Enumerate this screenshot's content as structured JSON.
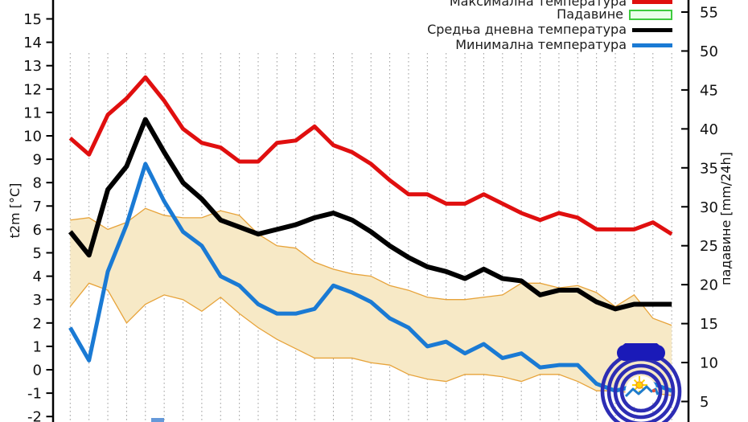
{
  "legend": {
    "items": [
      {
        "label": "Максимална температура",
        "type": "line",
        "color": "#e00f0f"
      },
      {
        "label": "Падавине",
        "type": "box",
        "fill": "#e9ffe9",
        "border": "#3ecb3e"
      },
      {
        "label": "Средња дневна температура",
        "type": "line",
        "color": "#000000"
      },
      {
        "label": "Минимална температура",
        "type": "line",
        "color": "#1a7ad4"
      }
    ]
  },
  "axes": {
    "left": {
      "title": "t2m [°C]",
      "ticks": [
        -2,
        -1,
        0,
        1,
        2,
        3,
        4,
        5,
        6,
        7,
        8,
        9,
        10,
        11,
        12,
        13,
        14,
        15
      ]
    },
    "right": {
      "title": "падавине [mm/24h]",
      "ticks": [
        5,
        10,
        15,
        20,
        25,
        30,
        35,
        40,
        45,
        50,
        55
      ]
    }
  },
  "chart_data": {
    "type": "line",
    "x_axis": {
      "points": 33,
      "visible_labels": []
    },
    "y_left": {
      "label": "t2m [°C]",
      "visible_range": [
        -2.2,
        15.8
      ],
      "ticks": [
        -2,
        -1,
        0,
        1,
        2,
        3,
        4,
        5,
        6,
        7,
        8,
        9,
        10,
        11,
        12,
        13,
        14,
        15
      ]
    },
    "y_right": {
      "label": "падавине [mm/24h]",
      "visible_range": [
        4.8,
        55.9
      ],
      "ticks": [
        5,
        10,
        15,
        20,
        25,
        30,
        35,
        40,
        45,
        50,
        55
      ]
    },
    "grid": {
      "vertical_dotted": true,
      "color": "#9e9e9e"
    },
    "series": [
      {
        "name": "Максимална температура",
        "axis": "left",
        "color": "#e00f0f",
        "width": 5,
        "values": [
          9.9,
          9.2,
          10.9,
          11.6,
          12.5,
          11.5,
          10.3,
          9.7,
          9.5,
          8.9,
          8.9,
          9.7,
          9.8,
          10.4,
          9.6,
          9.3,
          8.8,
          8.1,
          7.5,
          7.5,
          7.1,
          7.1,
          7.5,
          7.1,
          6.7,
          6.4,
          6.7,
          6.5,
          6.0,
          6.0,
          6.0,
          6.3,
          5.8
        ]
      },
      {
        "name": "Средња дневна температура",
        "axis": "left",
        "color": "#000000",
        "width": 6,
        "values": [
          5.9,
          4.9,
          7.7,
          8.7,
          10.7,
          9.3,
          8.0,
          7.3,
          6.4,
          6.1,
          5.8,
          6.0,
          6.2,
          6.5,
          6.7,
          6.4,
          5.9,
          5.3,
          4.8,
          4.4,
          4.2,
          3.9,
          4.3,
          3.9,
          3.8,
          3.2,
          3.4,
          3.4,
          2.9,
          2.6,
          2.8,
          2.8,
          2.8
        ]
      },
      {
        "name": "Минимална температура",
        "axis": "left",
        "color": "#1a7ad4",
        "width": 5,
        "values": [
          1.8,
          0.4,
          4.2,
          6.2,
          8.8,
          7.2,
          5.9,
          5.3,
          4.0,
          3.6,
          2.8,
          2.4,
          2.4,
          2.6,
          3.6,
          3.3,
          2.9,
          2.2,
          1.8,
          1.0,
          1.2,
          0.7,
          1.1,
          0.5,
          0.7,
          0.1,
          0.2,
          0.2,
          -0.6,
          -0.9,
          -0.7,
          -0.6,
          -0.9
        ]
      },
      {
        "name": "Падавине",
        "axis": "right",
        "color": "#3ecb3e",
        "bars_visible": false,
        "values": []
      }
    ],
    "climatology_band": {
      "fill": "#f7e9c6",
      "edge": "#e7a33a",
      "top": [
        6.4,
        6.5,
        6.0,
        6.3,
        6.9,
        6.6,
        6.5,
        6.5,
        6.8,
        6.6,
        5.8,
        5.3,
        5.2,
        4.6,
        4.3,
        4.1,
        4.0,
        3.6,
        3.4,
        3.1,
        3.0,
        3.0,
        3.1,
        3.2,
        3.7,
        3.7,
        3.5,
        3.6,
        3.3,
        2.7,
        3.2,
        2.2,
        1.9
      ],
      "bottom": [
        2.7,
        3.7,
        3.4,
        2.0,
        2.8,
        3.2,
        3.0,
        2.5,
        3.1,
        2.4,
        1.8,
        1.3,
        0.9,
        0.5,
        0.5,
        0.5,
        0.3,
        0.2,
        -0.2,
        -0.4,
        -0.5,
        -0.2,
        -0.2,
        -0.3,
        -0.5,
        -0.2,
        -0.2,
        -0.5,
        -0.9,
        -0.9,
        -1.0,
        -1.0,
        -1.1
      ]
    }
  }
}
